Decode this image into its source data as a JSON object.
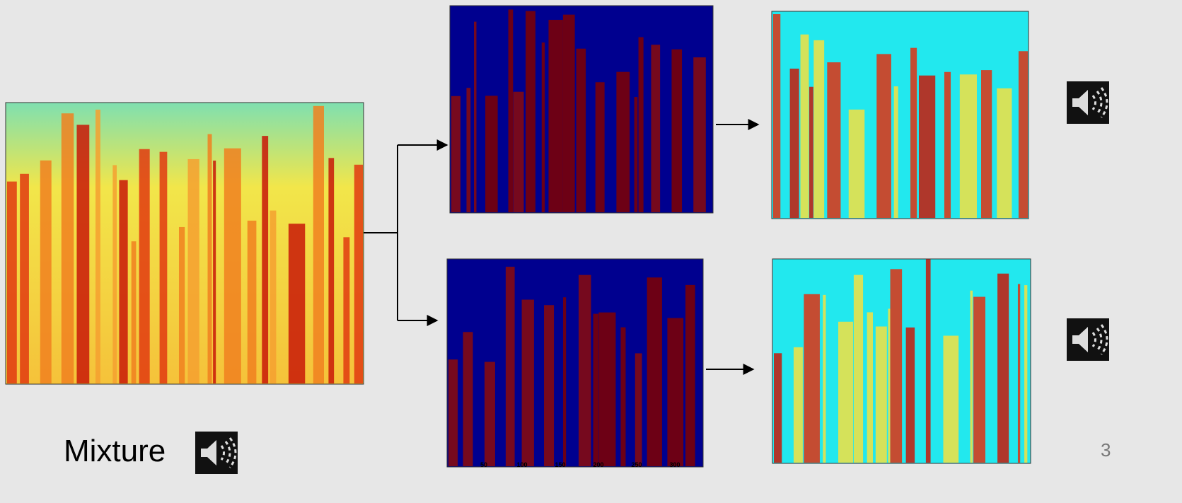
{
  "mixture_label": "Mixture",
  "page_number": "3",
  "mask_axis": {
    "ticks": [
      "50",
      "100",
      "150",
      "200",
      "250",
      "300"
    ]
  }
}
